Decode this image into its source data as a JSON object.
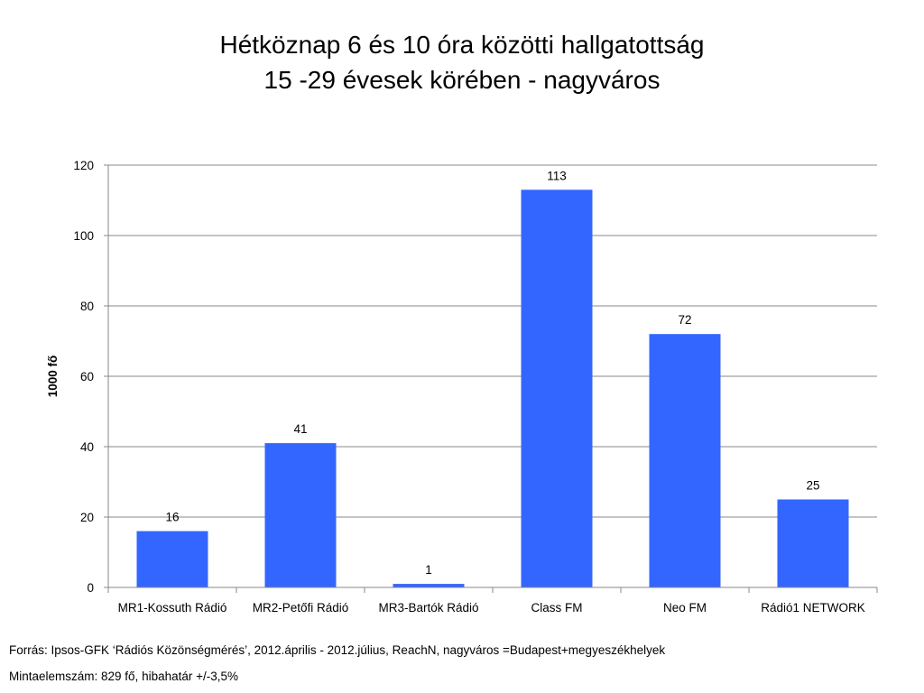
{
  "title_line1": "Hétköznap 6 és 10 óra közötti hallgatottság",
  "title_line2": "15 -29 évesek körében - nagyváros",
  "footer": {
    "source": "Forrás: Ipsos-GFK ‘Rádiós Közönségmérés’, 2012.április - 2012.július, ReachN,  nagyváros =Budapest+megyeszékhelyek",
    "sample": "Mintaelemszám: 829 fő, hibahatár +/-3,5%"
  },
  "colors": {
    "bar": "#3366ff",
    "grid": "#888888",
    "axis": "#888888"
  },
  "chart_data": {
    "type": "bar",
    "categories": [
      "MR1-Kossuth Rádió",
      "MR2-Petőfi Rádió",
      "MR3-Bartók Rádió",
      "Class FM",
      "Neo FM",
      "Rádió1 NETWORK"
    ],
    "values": [
      16,
      41,
      1,
      113,
      72,
      25
    ],
    "data_labels": [
      "16",
      "41",
      "1",
      "113",
      "72",
      "25"
    ],
    "ylabel": "1000 fő",
    "xlabel": "",
    "ylim": [
      0,
      120
    ],
    "yticks": [
      0,
      20,
      40,
      60,
      80,
      100,
      120
    ],
    "grid": true,
    "legend": "none"
  }
}
